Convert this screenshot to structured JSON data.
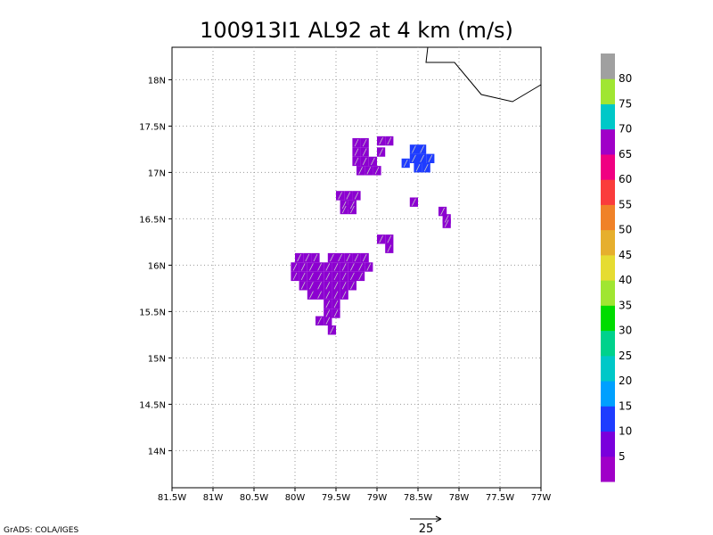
{
  "chart_data": {
    "type": "heatmap",
    "title": "100913I1 AL92 at 4 km (m/s)",
    "xlabel": "",
    "ylabel": "",
    "xlim": [
      -81.5,
      -77.0
    ],
    "ylim": [
      13.6,
      18.35
    ],
    "x_ticks": [
      "81.5W",
      "81W",
      "80.5W",
      "80W",
      "79.5W",
      "79W",
      "78.5W",
      "78W",
      "77.5W",
      "77W"
    ],
    "x_tick_values": [
      -81.5,
      -81,
      -80.5,
      -80,
      -79.5,
      -79,
      -78.5,
      -78,
      -77.5,
      -77
    ],
    "y_ticks": [
      "14N",
      "14.5N",
      "15N",
      "15.5N",
      "16N",
      "16.5N",
      "17N",
      "17.5N",
      "18N"
    ],
    "y_tick_values": [
      14,
      14.5,
      15,
      15.5,
      16,
      16.5,
      17,
      17.5,
      18
    ],
    "grid": true,
    "colorbar": {
      "labels": [
        "5",
        "10",
        "15",
        "20",
        "25",
        "30",
        "35",
        "40",
        "45",
        "50",
        "55",
        "60",
        "65",
        "70",
        "75",
        "80"
      ],
      "colors": [
        "#a000c8",
        "#7a00dc",
        "#1e3cff",
        "#00a0ff",
        "#00c8c8",
        "#00d28c",
        "#00dc00",
        "#a0e632",
        "#e6dc32",
        "#e6af2d",
        "#f08228",
        "#fa3c3c",
        "#f00082",
        "#a000c8",
        "#00c8c8",
        "#a0e632",
        "#a0a0a0"
      ]
    },
    "wind_regions": [
      {
        "speed_class": "5-10",
        "cells": [
          [
            -79.95,
            16.08
          ],
          [
            -79.85,
            16.08
          ],
          [
            -79.75,
            16.08
          ],
          [
            -79.55,
            16.08
          ],
          [
            -79.45,
            16.08
          ],
          [
            -79.35,
            16.08
          ],
          [
            -79.25,
            16.08
          ],
          [
            -79.15,
            16.08
          ],
          [
            -80.0,
            15.98
          ],
          [
            -79.9,
            15.98
          ],
          [
            -79.8,
            15.98
          ],
          [
            -79.7,
            15.98
          ],
          [
            -79.6,
            15.98
          ],
          [
            -79.5,
            15.98
          ],
          [
            -79.4,
            15.98
          ],
          [
            -79.3,
            15.98
          ],
          [
            -79.2,
            15.98
          ],
          [
            -79.1,
            15.98
          ],
          [
            -80.0,
            15.88
          ],
          [
            -79.9,
            15.88
          ],
          [
            -79.8,
            15.88
          ],
          [
            -79.7,
            15.88
          ],
          [
            -79.6,
            15.88
          ],
          [
            -79.5,
            15.88
          ],
          [
            -79.4,
            15.88
          ],
          [
            -79.3,
            15.88
          ],
          [
            -79.2,
            15.88
          ],
          [
            -79.9,
            15.78
          ],
          [
            -79.8,
            15.78
          ],
          [
            -79.7,
            15.78
          ],
          [
            -79.6,
            15.78
          ],
          [
            -79.5,
            15.78
          ],
          [
            -79.4,
            15.78
          ],
          [
            -79.3,
            15.78
          ],
          [
            -79.8,
            15.68
          ],
          [
            -79.7,
            15.68
          ],
          [
            -79.6,
            15.68
          ],
          [
            -79.5,
            15.68
          ],
          [
            -79.4,
            15.68
          ],
          [
            -79.6,
            15.58
          ],
          [
            -79.5,
            15.58
          ],
          [
            -79.6,
            15.48
          ],
          [
            -79.5,
            15.48
          ],
          [
            -79.7,
            15.4
          ],
          [
            -79.6,
            15.4
          ],
          [
            -79.55,
            15.3
          ],
          [
            -79.45,
            16.75
          ],
          [
            -79.35,
            16.75
          ],
          [
            -79.25,
            16.75
          ],
          [
            -79.4,
            16.65
          ],
          [
            -79.3,
            16.65
          ],
          [
            -79.4,
            16.6
          ],
          [
            -79.3,
            16.6
          ],
          [
            -79.25,
            17.32
          ],
          [
            -79.15,
            17.32
          ],
          [
            -78.95,
            17.34
          ],
          [
            -78.85,
            17.34
          ],
          [
            -79.25,
            17.22
          ],
          [
            -79.15,
            17.22
          ],
          [
            -78.95,
            17.22
          ],
          [
            -79.25,
            17.12
          ],
          [
            -79.15,
            17.12
          ],
          [
            -79.05,
            17.12
          ],
          [
            -79.2,
            17.02
          ],
          [
            -79.1,
            17.02
          ],
          [
            -79.0,
            17.02
          ],
          [
            -78.95,
            16.28
          ],
          [
            -78.85,
            16.28
          ],
          [
            -78.85,
            16.18
          ],
          [
            -78.2,
            16.58
          ],
          [
            -78.15,
            16.5
          ],
          [
            -78.15,
            16.45
          ],
          [
            -78.55,
            16.68
          ]
        ]
      },
      {
        "speed_class": "10-15",
        "cells": [
          [
            -78.55,
            17.25
          ],
          [
            -78.45,
            17.25
          ],
          [
            -78.55,
            17.15
          ],
          [
            -78.45,
            17.15
          ],
          [
            -78.35,
            17.15
          ],
          [
            -78.65,
            17.1
          ],
          [
            -78.5,
            17.05
          ],
          [
            -78.4,
            17.05
          ]
        ]
      }
    ],
    "reference_vector": {
      "label": "25"
    }
  },
  "credit": "GrADS: COLA/IGES"
}
